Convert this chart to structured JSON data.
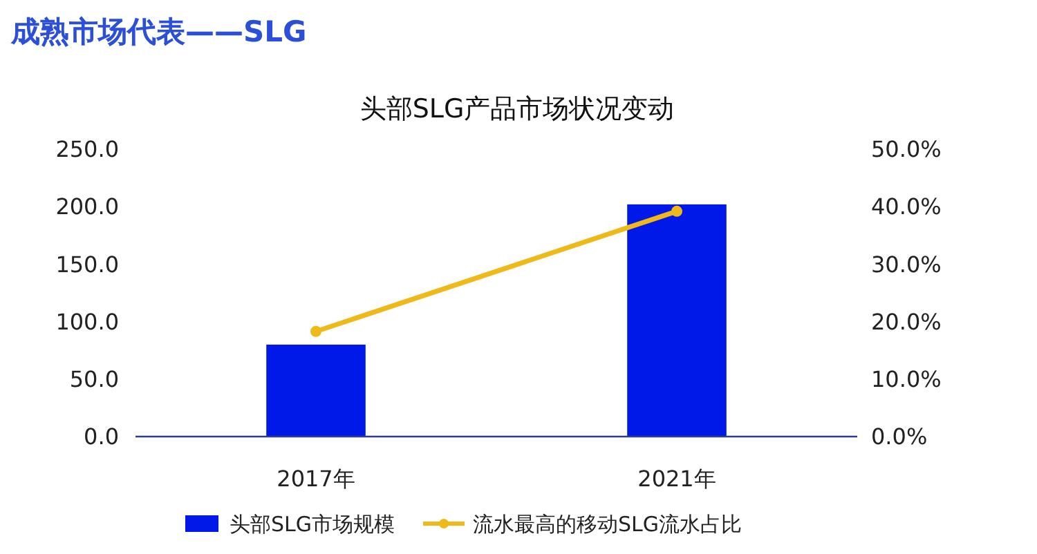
{
  "chart_data": {
    "type": "bar",
    "title": "成熟市场代表——SLG",
    "subtitle": "头部SLG产品市场状况变动",
    "categories": [
      "2017年",
      "2021年"
    ],
    "series": [
      {
        "name": "头部SLG市场规模",
        "color": "#0019e8",
        "values": [
          80,
          202
        ]
      },
      {
        "name": "流水最高的移动SLG流水占比",
        "type": "line",
        "axis": "y2",
        "color": "#f0b91a",
        "values": [
          18.3,
          39.2
        ],
        "marker": "circle"
      }
    ],
    "ylim": [
      0,
      250
    ],
    "yticks": [
      {
        "value": 0,
        "label": "0.0"
      },
      {
        "value": 50,
        "label": "50.0"
      },
      {
        "value": 100,
        "label": "100.0"
      },
      {
        "value": 150,
        "label": "150.0"
      },
      {
        "value": 200,
        "label": "200.0"
      },
      {
        "value": 250,
        "label": "250.0"
      }
    ],
    "y2lim": [
      0,
      50
    ],
    "y2ticks": [
      {
        "value": 0,
        "label": "0.0%"
      },
      {
        "value": 10,
        "label": "10.0%"
      },
      {
        "value": 20,
        "label": "20.0%"
      },
      {
        "value": 30,
        "label": "30.0%"
      },
      {
        "value": 40,
        "label": "40.0%"
      },
      {
        "value": 50,
        "label": "50.0%"
      }
    ],
    "grid": false,
    "legend": "bottom"
  }
}
